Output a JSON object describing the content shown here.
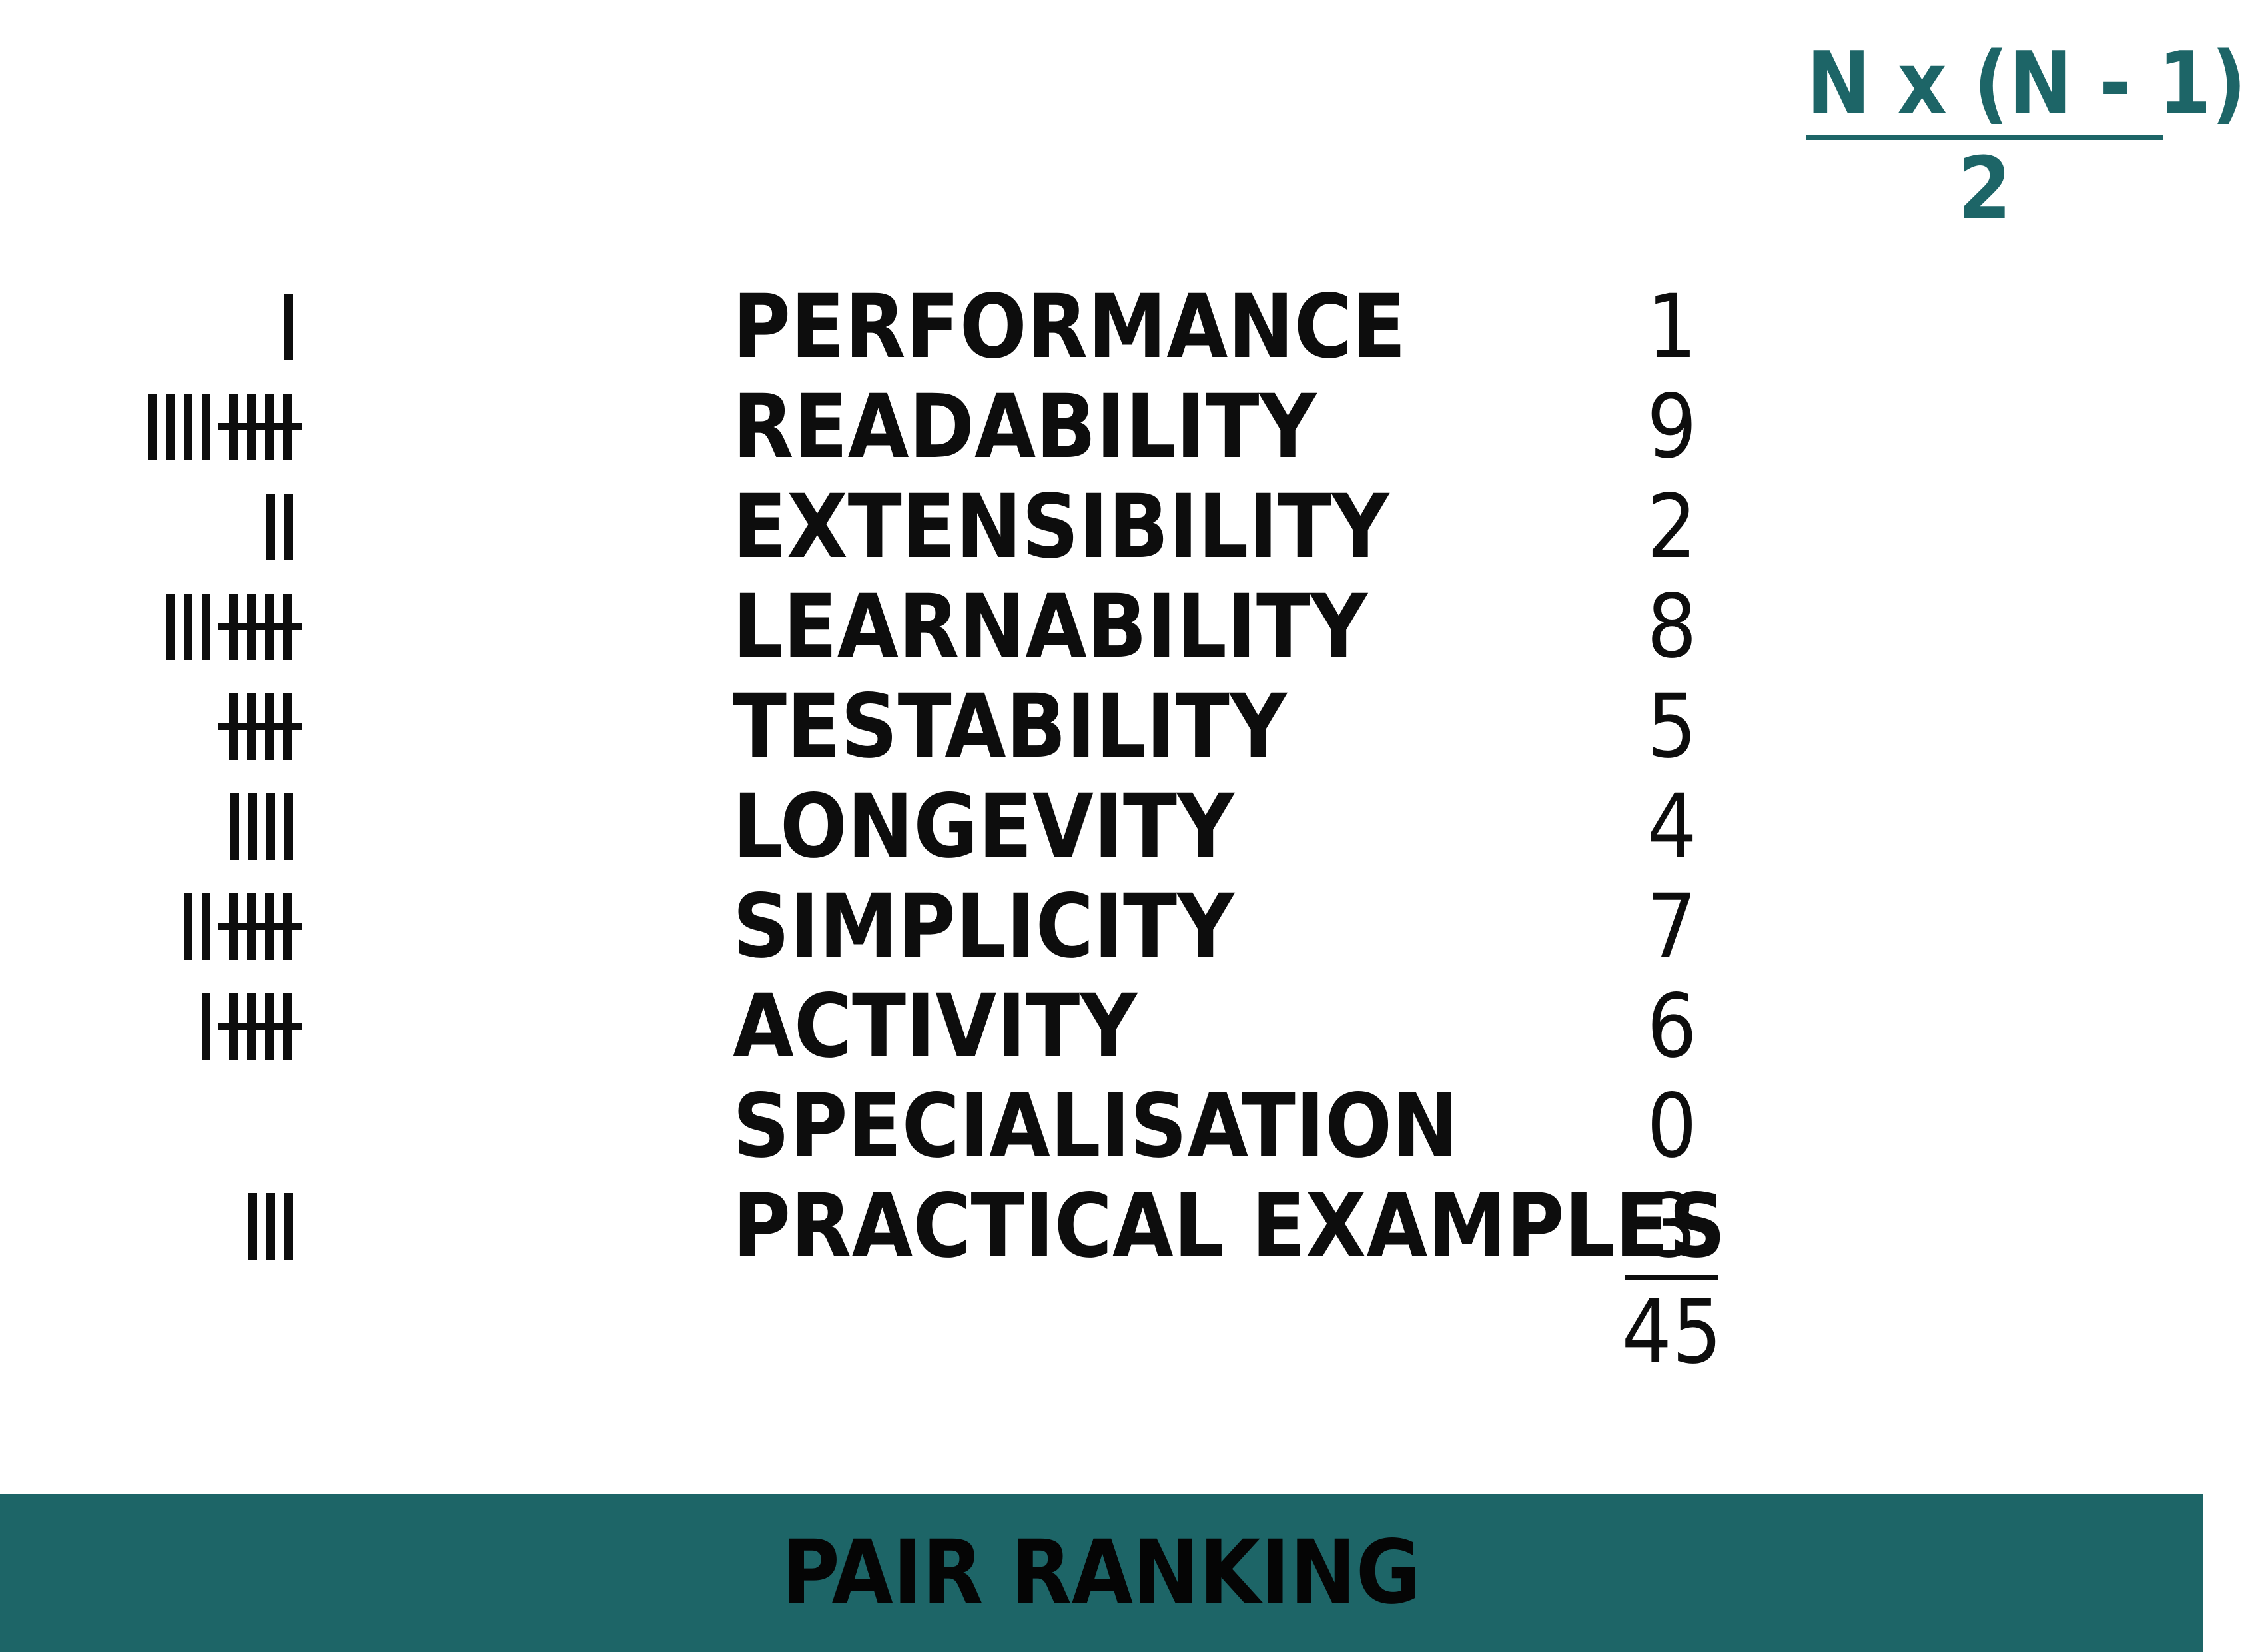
{
  "formula": {
    "numerator": "N x (N - 1)",
    "denominator": "2"
  },
  "criteria": [
    {
      "tally": 1,
      "label": "PERFORMANCE",
      "score": "1"
    },
    {
      "tally": 9,
      "label": "READABILITY",
      "score": "9"
    },
    {
      "tally": 2,
      "label": "EXTENSIBILITY",
      "score": "2"
    },
    {
      "tally": 8,
      "label": "LEARNABILITY",
      "score": "8"
    },
    {
      "tally": 5,
      "label": "TESTABILITY",
      "score": "5"
    },
    {
      "tally": 4,
      "label": "LONGEVITY",
      "score": "4"
    },
    {
      "tally": 7,
      "label": "SIMPLICITY",
      "score": "7"
    },
    {
      "tally": 6,
      "label": "ACTIVITY",
      "score": "6"
    },
    {
      "tally": 0,
      "label": "SPECIALISATION",
      "score": "0"
    },
    {
      "tally": 3,
      "label": "PRACTICAL EXAMPLES",
      "score": "3"
    }
  ],
  "total": "45",
  "footer": {
    "title": "PAIR RANKING"
  },
  "colors": {
    "accent": "#1d6567",
    "text": "#0d0d0d",
    "background": "#ffffff"
  }
}
